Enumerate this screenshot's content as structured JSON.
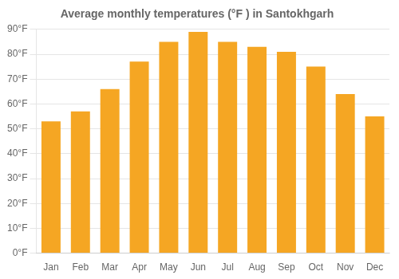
{
  "chart_data": {
    "type": "bar",
    "title": "Average monthly temperatures (°F ) in Santokhgarh",
    "categories": [
      "Jan",
      "Feb",
      "Mar",
      "Apr",
      "May",
      "Jun",
      "Jul",
      "Aug",
      "Sep",
      "Oct",
      "Nov",
      "Dec"
    ],
    "values": [
      53,
      57,
      66,
      77,
      85,
      89,
      85,
      83,
      81,
      75,
      64,
      55
    ],
    "color": "#F5A623",
    "ylim": [
      0,
      90
    ],
    "yticks": [
      {
        "value": 0,
        "label": "0°F"
      },
      {
        "value": 10,
        "label": "10°F"
      },
      {
        "value": 20,
        "label": "20°F"
      },
      {
        "value": 30,
        "label": "30°F"
      },
      {
        "value": 40,
        "label": "40°F"
      },
      {
        "value": 50,
        "label": "50°F"
      },
      {
        "value": 60,
        "label": "60°F"
      },
      {
        "value": 70,
        "label": "70°F"
      },
      {
        "value": 80,
        "label": "80°F"
      },
      {
        "value": 90,
        "label": "90°F"
      }
    ],
    "grid": true
  }
}
